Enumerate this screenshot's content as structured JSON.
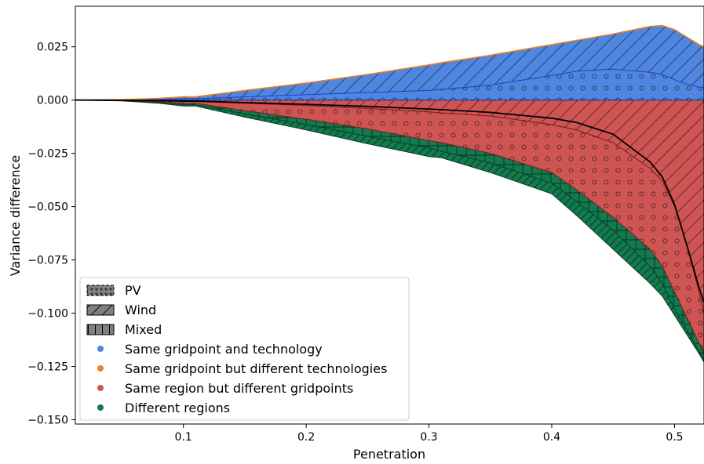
{
  "chart_data": {
    "type": "area",
    "xlabel": "Penetration",
    "ylabel": "Variance difference",
    "xlim": [
      0.012,
      0.524
    ],
    "ylim": [
      -0.152,
      0.044
    ],
    "xticks": [
      0.1,
      0.2,
      0.3,
      0.4,
      0.5
    ],
    "xtick_labels": [
      "0.1",
      "0.2",
      "0.3",
      "0.4",
      "0.5"
    ],
    "yticks": [
      0.025,
      0.0,
      -0.025,
      -0.05,
      -0.075,
      -0.1,
      -0.125,
      -0.15
    ],
    "ytick_labels": [
      "0.025",
      "0.000",
      "−0.025",
      "−0.050",
      "−0.075",
      "−0.100",
      "−0.125",
      "−0.150"
    ],
    "grid": false,
    "legend_position": "lower-left",
    "legend_hatch_entries": [
      {
        "label": "PV",
        "hatch": "dots"
      },
      {
        "label": "Wind",
        "hatch": "diagonal"
      },
      {
        "label": "Mixed",
        "hatch": "vertical"
      }
    ],
    "legend_color_entries": [
      {
        "label": "Same gridpoint and technology",
        "color": "#4f86e0"
      },
      {
        "label": "Same gridpoint but different technologies",
        "color": "#f07f1a"
      },
      {
        "label": "Same region but different gridpoints",
        "color": "#cf5555"
      },
      {
        "label": "Different regions",
        "color": "#127a4e"
      }
    ],
    "x": [
      0.012,
      0.05,
      0.08,
      0.1,
      0.11,
      0.15,
      0.2,
      0.25,
      0.3,
      0.31,
      0.35,
      0.4,
      0.42,
      0.45,
      0.48,
      0.49,
      0.5,
      0.51,
      0.52,
      0.524
    ],
    "series": [
      {
        "color": "#4f86e0",
        "hatch": "diagonal",
        "upper": [
          0,
          0.0002,
          0.0008,
          0.0015,
          0.0015,
          0.0045,
          0.008,
          0.012,
          0.0165,
          0.0175,
          0.021,
          0.026,
          0.028,
          0.031,
          0.0345,
          0.035,
          0.033,
          0.0295,
          0.026,
          0.025
        ],
        "lower": [
          0,
          0.0001,
          0.0003,
          0.0006,
          0.0006,
          0.0015,
          0.0025,
          0.0035,
          0.0045,
          0.005,
          0.007,
          0.0115,
          0.0135,
          0.0145,
          0.013,
          0.012,
          0.0095,
          0.0075,
          0.006,
          0.006
        ]
      },
      {
        "color": "#4f86e0",
        "hatch": "dots",
        "upper": [
          0,
          0.0001,
          0.0003,
          0.0006,
          0.0006,
          0.0015,
          0.0025,
          0.0035,
          0.0045,
          0.005,
          0.007,
          0.0115,
          0.0135,
          0.0145,
          0.013,
          0.012,
          0.0095,
          0.0075,
          0.006,
          0.006
        ],
        "lower": [
          0,
          0,
          0,
          0,
          0,
          0,
          0,
          0,
          0,
          0,
          0,
          0,
          0,
          0,
          0,
          0,
          0,
          0,
          0,
          0
        ]
      },
      {
        "color": "#cf5555",
        "hatch": "diagonal",
        "upper": [
          0,
          0,
          0,
          0,
          0,
          0,
          0,
          0,
          0,
          0,
          0,
          0,
          0,
          0,
          0,
          0,
          0,
          0,
          0,
          0
        ],
        "lower": [
          0,
          -0.0001,
          -0.0003,
          -0.0006,
          -0.0006,
          -0.0015,
          -0.0025,
          -0.004,
          -0.0055,
          -0.006,
          -0.0075,
          -0.0115,
          -0.014,
          -0.02,
          -0.032,
          -0.038,
          -0.05,
          -0.068,
          -0.09,
          -0.1
        ]
      },
      {
        "color": "#cf5555",
        "hatch": "dots",
        "upper": [
          0,
          -0.0001,
          -0.0003,
          -0.0006,
          -0.0006,
          -0.0015,
          -0.0025,
          -0.004,
          -0.0055,
          -0.006,
          -0.0075,
          -0.0115,
          -0.014,
          -0.02,
          -0.032,
          -0.038,
          -0.05,
          -0.068,
          -0.09,
          -0.1
        ],
        "lower": [
          0,
          -0.0002,
          -0.0008,
          -0.0015,
          -0.0015,
          -0.005,
          -0.009,
          -0.0135,
          -0.019,
          -0.02,
          -0.025,
          -0.034,
          -0.042,
          -0.055,
          -0.07,
          -0.078,
          -0.09,
          -0.102,
          -0.114,
          -0.118
        ]
      },
      {
        "color": "#127a4e",
        "hatch": "vertical",
        "upper": [
          0,
          -0.0002,
          -0.0008,
          -0.0015,
          -0.0015,
          -0.005,
          -0.009,
          -0.0135,
          -0.019,
          -0.02,
          -0.025,
          -0.034,
          -0.042,
          -0.055,
          -0.07,
          -0.078,
          -0.09,
          -0.102,
          -0.114,
          -0.118
        ],
        "lower": [
          0,
          -0.0003,
          -0.0012,
          -0.0022,
          -0.0022,
          -0.0065,
          -0.0115,
          -0.017,
          -0.0225,
          -0.024,
          -0.0295,
          -0.039,
          -0.0475,
          -0.061,
          -0.078,
          -0.086,
          -0.098,
          -0.108,
          -0.118,
          -0.122
        ]
      },
      {
        "color": "#127a4e",
        "hatch": "diagonal",
        "upper": [
          0,
          -0.0003,
          -0.0012,
          -0.0022,
          -0.0022,
          -0.0065,
          -0.0115,
          -0.017,
          -0.0225,
          -0.024,
          -0.0295,
          -0.039,
          -0.0475,
          -0.061,
          -0.078,
          -0.086,
          -0.098,
          -0.108,
          -0.118,
          -0.122
        ],
        "lower": [
          0,
          -0.0004,
          -0.0015,
          -0.0028,
          -0.0028,
          -0.008,
          -0.014,
          -0.0205,
          -0.0265,
          -0.027,
          -0.034,
          -0.044,
          -0.054,
          -0.07,
          -0.086,
          -0.092,
          -0.101,
          -0.11,
          -0.119,
          -0.123
        ]
      }
    ],
    "reference_line": {
      "color": "#000000",
      "values": [
        0,
        -0.0001,
        -0.0003,
        -0.0005,
        -0.0005,
        -0.0012,
        -0.002,
        -0.003,
        -0.0042,
        -0.0045,
        -0.0058,
        -0.0085,
        -0.0105,
        -0.016,
        -0.029,
        -0.036,
        -0.049,
        -0.068,
        -0.088,
        -0.095
      ]
    }
  }
}
